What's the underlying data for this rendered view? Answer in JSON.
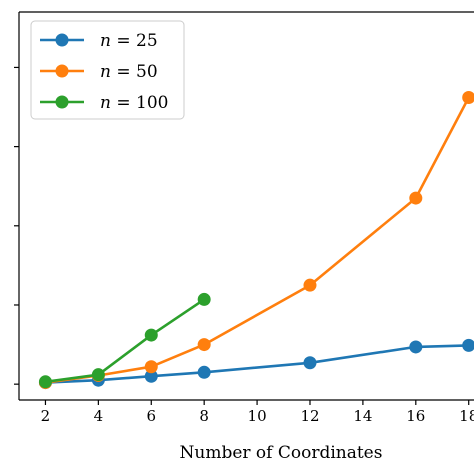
{
  "chart_data": {
    "type": "line",
    "title": "",
    "xlabel": "Number of Coordinates",
    "ylabel": "",
    "xlim": [
      1.0,
      18.2
    ],
    "ylim": [
      -0.2,
      4.7
    ],
    "grid": false,
    "legend_position": "top-left",
    "x_ticks": [
      2,
      4,
      6,
      8,
      10,
      12,
      14,
      16,
      18
    ],
    "x_tick_labels": [
      "2",
      "4",
      "6",
      "8",
      "10",
      "12",
      "14",
      "16",
      "18"
    ],
    "y_ticks": [
      0,
      1,
      2,
      3,
      4
    ],
    "series": [
      {
        "name": "n = 25",
        "legend_var": "n",
        "legend_value": "25",
        "color": "#1f77b4",
        "x": [
          2,
          4,
          6,
          8,
          12,
          16,
          18
        ],
        "y": [
          0.02,
          0.05,
          0.1,
          0.15,
          0.27,
          0.47,
          0.49
        ]
      },
      {
        "name": "n = 50",
        "legend_var": "n",
        "legend_value": "50",
        "color": "#ff7f0e",
        "x": [
          2,
          4,
          6,
          8,
          12,
          16,
          18
        ],
        "y": [
          0.02,
          0.11,
          0.22,
          0.5,
          1.25,
          2.35,
          3.62
        ]
      },
      {
        "name": "n = 100",
        "legend_var": "n",
        "legend_value": "100",
        "color": "#2ca02c",
        "x": [
          2,
          4,
          6,
          8
        ],
        "y": [
          0.03,
          0.12,
          0.62,
          1.07
        ]
      }
    ]
  }
}
